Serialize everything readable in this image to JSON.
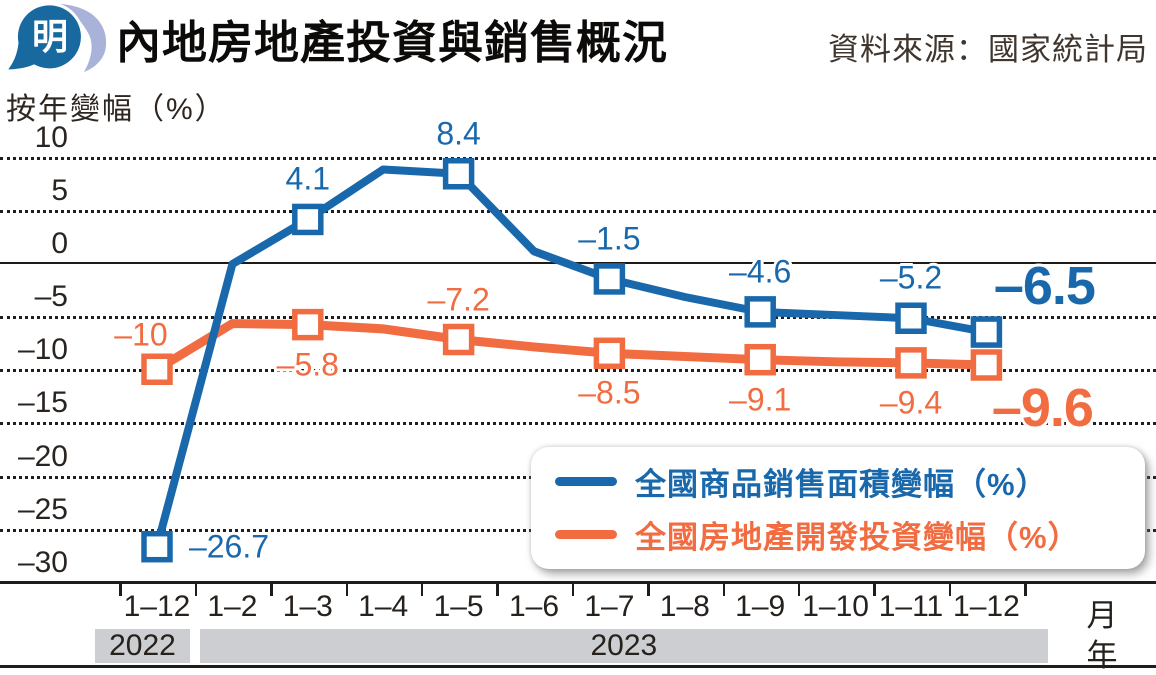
{
  "header": {
    "title": "內地房地產投資與銷售概況",
    "source": "資料來源：國家統計局",
    "logo_char": "明"
  },
  "chart_data": {
    "type": "line",
    "title": "內地房地產投資與銷售概況",
    "ylabel": "按年變幅（%）",
    "x_unit_label": "月",
    "year_unit_label": "年",
    "ylim": [
      -30,
      10
    ],
    "grid": "horizontal dotted, solid zero line",
    "legend_position": "bottom-right overlay box",
    "categories": [
      "1–12",
      "1–2",
      "1–3",
      "1–4",
      "1–5",
      "1–6",
      "1–7",
      "1–8",
      "1–9",
      "1–10",
      "1–11",
      "1–12"
    ],
    "year_bands": [
      {
        "label": "2022",
        "from_index": 0,
        "to_index": 0
      },
      {
        "label": "2023",
        "from_index": 1,
        "to_index": 11
      }
    ],
    "y_ticks": [
      {
        "label": "10",
        "value": 10
      },
      {
        "label": "5",
        "value": 5
      },
      {
        "label": "0",
        "value": 0
      },
      {
        "label": "–5",
        "value": -5
      },
      {
        "label": "–10",
        "value": -10
      },
      {
        "label": "–15",
        "value": -15
      },
      {
        "label": "–20",
        "value": -20
      },
      {
        "label": "–25",
        "value": -25
      },
      {
        "label": "–30",
        "value": -30
      }
    ],
    "series": [
      {
        "name": "全國商品銷售面積變幅（%）",
        "color": "#1a68ac",
        "values": [
          -26.7,
          -0.1,
          4.1,
          8.8,
          8.4,
          1.1,
          -1.5,
          -3.2,
          -4.6,
          -4.9,
          -5.2,
          -6.5
        ],
        "points": [
          {
            "i": 0,
            "label": "–26.7",
            "pos": "right"
          },
          {
            "i": 2,
            "label": "4.1",
            "pos": "above"
          },
          {
            "i": 4,
            "label": "8.4",
            "pos": "above"
          },
          {
            "i": 6,
            "label": "–1.5",
            "pos": "above"
          },
          {
            "i": 8,
            "label": "–4.6",
            "pos": "above"
          },
          {
            "i": 10,
            "label": "–5.2",
            "pos": "above"
          },
          {
            "i": 11,
            "label": "–6.5",
            "pos": "end-top",
            "emphasis": true
          }
        ]
      },
      {
        "name": "全國房地產開發投資變幅（%）",
        "color": "#f26c41",
        "values": [
          -10,
          -5.7,
          -5.8,
          -6.2,
          -7.2,
          -7.9,
          -8.5,
          -8.8,
          -9.1,
          -9.3,
          -9.4,
          -9.6
        ],
        "points": [
          {
            "i": 0,
            "label": "–10",
            "pos": "above-left"
          },
          {
            "i": 2,
            "label": "–5.8",
            "pos": "below"
          },
          {
            "i": 4,
            "label": "–7.2",
            "pos": "above"
          },
          {
            "i": 6,
            "label": "–8.5",
            "pos": "below"
          },
          {
            "i": 8,
            "label": "–9.1",
            "pos": "below"
          },
          {
            "i": 10,
            "label": "–9.4",
            "pos": "below"
          },
          {
            "i": 11,
            "label": "–9.6",
            "pos": "end-bottom",
            "emphasis": true
          }
        ]
      }
    ]
  },
  "colors": {
    "logo_blue": "#17699f",
    "logo_light": "#a9b2d8",
    "axis_ink": "#1d1d1b",
    "year_band_bg": "#ccced1"
  }
}
